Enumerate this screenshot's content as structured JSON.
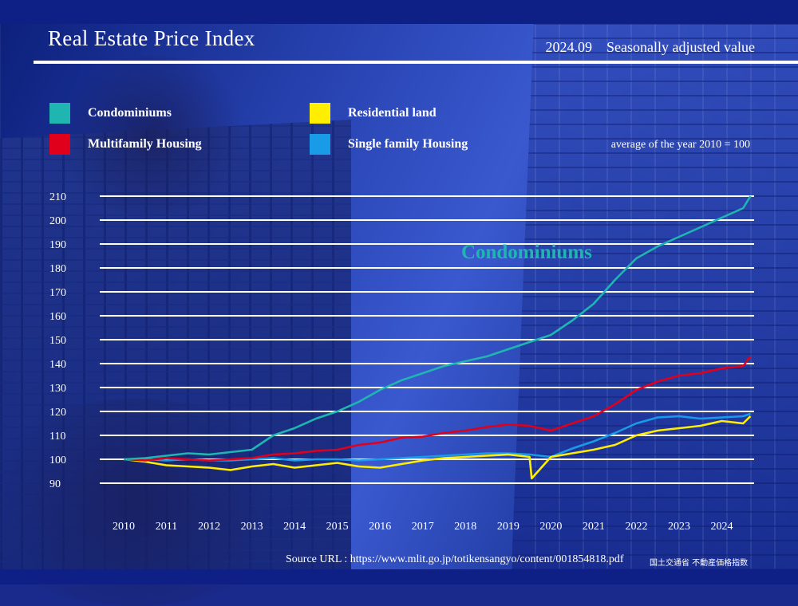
{
  "header": {
    "title": "Real Estate Price Index",
    "subtitle": "2024.09　Seasonally adjusted value",
    "note": "average of the year 2010 = 100"
  },
  "legend": [
    {
      "label": "Condominiums",
      "color": "#1fb5b0"
    },
    {
      "label": "Residential land",
      "color": "#ffee00"
    },
    {
      "label": "Multifamily Housing",
      "color": "#e0001b"
    },
    {
      "label": "Single family Housing",
      "color": "#1a9be8"
    }
  ],
  "footer": {
    "source": "Source URL :  https://www.mlit.go.jp/totikensangyo/content/001854818.pdf",
    "publisher": "国土交通省 不動産価格指数"
  },
  "chart_data": {
    "type": "line",
    "title": "Real Estate Price Index",
    "ylim": [
      90,
      210
    ],
    "yticks": [
      90,
      100,
      110,
      120,
      130,
      140,
      150,
      160,
      170,
      180,
      190,
      200,
      210
    ],
    "xticks": [
      "2010",
      "2011",
      "2012",
      "2013",
      "2014",
      "2015",
      "2016",
      "2017",
      "2018",
      "2019",
      "2020",
      "2021",
      "2022",
      "2023",
      "2024"
    ],
    "xlim": [
      2010,
      2024.7
    ],
    "grid": true,
    "annotations": [
      {
        "text": "Condominiums",
        "x": 2017.9,
        "y": 184,
        "color": "#1fb5b0"
      }
    ],
    "series": [
      {
        "name": "Condominiums",
        "color": "#1fb5b0",
        "x": [
          2010,
          2010.5,
          2011,
          2011.5,
          2012,
          2012.5,
          2013,
          2013.5,
          2014,
          2014.5,
          2015,
          2015.5,
          2016,
          2016.5,
          2017,
          2017.5,
          2018,
          2018.5,
          2019,
          2019.5,
          2020,
          2020.5,
          2021,
          2021.5,
          2022,
          2022.5,
          2023,
          2023.5,
          2024,
          2024.5,
          2024.67
        ],
        "y": [
          100,
          100.5,
          101.5,
          102.5,
          102,
          103,
          104,
          110,
          113,
          117,
          120,
          124,
          129,
          133,
          136,
          139,
          141,
          143,
          146,
          149,
          152,
          158,
          165,
          175,
          184,
          189,
          193,
          197,
          201,
          205,
          210
        ]
      },
      {
        "name": "Multifamily Housing",
        "color": "#e0001b",
        "x": [
          2010,
          2010.5,
          2011,
          2011.5,
          2012,
          2012.5,
          2013,
          2013.5,
          2014,
          2014.5,
          2015,
          2015.5,
          2016,
          2016.5,
          2017,
          2017.5,
          2018,
          2018.5,
          2019,
          2019.5,
          2020,
          2020.5,
          2021,
          2021.5,
          2022,
          2022.5,
          2023,
          2023.5,
          2024,
          2024.5,
          2024.67
        ],
        "y": [
          100,
          99.5,
          100.5,
          100,
          99.5,
          100,
          100.5,
          102,
          102.5,
          103.5,
          104,
          106,
          107,
          109,
          109.5,
          111,
          112,
          113.5,
          114.5,
          114,
          112,
          115,
          118,
          123,
          129,
          132.5,
          135,
          136,
          138,
          139,
          143
        ]
      },
      {
        "name": "Residential land",
        "color": "#ffee00",
        "x": [
          2010,
          2010.5,
          2011,
          2011.5,
          2012,
          2012.5,
          2013,
          2013.5,
          2014,
          2014.5,
          2015,
          2015.5,
          2016,
          2016.5,
          2017,
          2017.5,
          2018,
          2018.5,
          2019,
          2019.5,
          2019.55,
          2020,
          2020.5,
          2021,
          2021.5,
          2022,
          2022.5,
          2023,
          2023.5,
          2024,
          2024.5,
          2024.67
        ],
        "y": [
          100,
          99,
          97.5,
          97,
          96.5,
          95.5,
          97,
          98,
          96.5,
          97.5,
          98.5,
          97,
          96.5,
          98,
          99.5,
          100.5,
          101,
          101.5,
          102,
          101,
          92,
          101,
          102.5,
          104,
          106,
          110,
          112,
          113,
          114,
          116,
          115,
          118
        ]
      },
      {
        "name": "Single family Housing",
        "color": "#1a9be8",
        "x": [
          2010,
          2010.5,
          2011,
          2011.5,
          2012,
          2012.5,
          2013,
          2013.5,
          2014,
          2014.5,
          2015,
          2015.5,
          2016,
          2016.5,
          2017,
          2017.5,
          2018,
          2018.5,
          2019,
          2019.5,
          2020,
          2020.5,
          2021,
          2021.5,
          2022,
          2022.5,
          2023,
          2023.5,
          2024,
          2024.5,
          2024.67
        ],
        "y": [
          100,
          100,
          99.5,
          100,
          99.5,
          99.5,
          100,
          100.5,
          99.5,
          100,
          100,
          99.5,
          100,
          100.5,
          101,
          101.5,
          102,
          102.5,
          102.5,
          102,
          101,
          104.5,
          107.5,
          111,
          115,
          117.5,
          118,
          117,
          117.5,
          118,
          119
        ]
      }
    ]
  }
}
